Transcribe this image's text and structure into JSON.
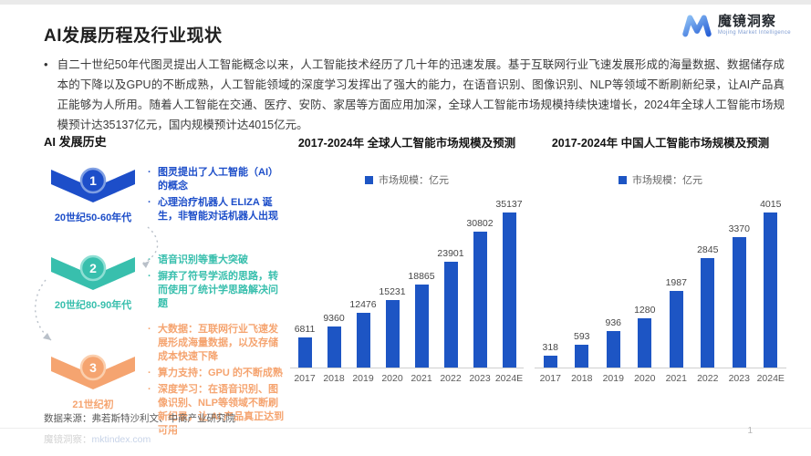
{
  "header": {
    "title": "AI发展历程及行业现状",
    "logo": {
      "name": "魔镜洞察",
      "tagline": "Mojing Market Intelligence",
      "gradient": [
        "#8fc1f5",
        "#2a62d6"
      ]
    }
  },
  "intro": {
    "bullet": "•",
    "text": "自二十世纪50年代图灵提出人工智能概念以来，人工智能技术经历了几十年的迅速发展。基于互联网行业飞速发展形成的海量数据、数据储存成本的下降以及GPU的不断成熟，人工智能领域的深度学习发挥出了强大的能力，在语音识别、图像识别、NLP等领域不断刷新纪录，让AI产品真正能够为人所用。随着人工智能在交通、医疗、安防、家居等方面应用加深，全球人工智能市场规模持续快速增长，2024年全球人工智能市场规模预计达35137亿元，国内规模预计达4015亿元。"
  },
  "timeline": {
    "heading": "AI 发展历史",
    "stages": [
      {
        "number": "1",
        "era": "20世纪50-60年代",
        "color": "#1d4ec9",
        "ring": "#7f9fe3",
        "items": [
          "图灵提出了人工智能（AI）的概念",
          "心理治疗机器人 ELIZA 诞生，非智能对话机器人出现"
        ]
      },
      {
        "number": "2",
        "era": "20世纪80-90年代",
        "color": "#38bfad",
        "ring": "#8edfd4",
        "items": [
          "语音识别等重大突破",
          "摒弃了符号学派的思路，转而使用了统计学思路解决问题"
        ]
      },
      {
        "number": "3",
        "era": "21世纪初",
        "color": "#f5a470",
        "ring": "#fbcfae",
        "items": [
          "大数据：互联网行业飞速发展形成海量数据，以及存储成本快速下降",
          "算力支持：GPU 的不断成熟",
          "深度学习：在语音识别、图像识别、NLP等领域不断刷新纪录，让 AI 产品真正达到可用"
        ]
      }
    ]
  },
  "chart_data": [
    {
      "type": "bar",
      "title": "2017-2024年 全球人工智能市场规模及预测",
      "legend": "市场规模：亿元",
      "categories": [
        "2017",
        "2018",
        "2019",
        "2020",
        "2021",
        "2022",
        "2023",
        "2024E"
      ],
      "values": [
        6811,
        9360,
        12476,
        15231,
        18865,
        23901,
        30802,
        35137
      ],
      "bar_color": "#1d55c4",
      "ylabel": "亿元",
      "ylim": [
        0,
        35137
      ],
      "grid": false,
      "legend_position": "top-center"
    },
    {
      "type": "bar",
      "title": "2017-2024年 中国人工智能市场规模及预测",
      "legend": "市场规模：亿元",
      "categories": [
        "2017",
        "2018",
        "2019",
        "2020",
        "2021",
        "2022",
        "2023",
        "2024E"
      ],
      "values": [
        318,
        593,
        936,
        1280,
        1987,
        2845,
        3370,
        4015
      ],
      "bar_color": "#1d55c4",
      "ylabel": "亿元",
      "ylim": [
        0,
        4015
      ],
      "grid": false,
      "legend_position": "top-center"
    }
  ],
  "footer": {
    "source": "数据来源：弗若斯特沙利文、中商产业研究院",
    "watermark_label": "魔镜洞察：",
    "watermark_link": "mktindex.com",
    "page_number": "1"
  }
}
